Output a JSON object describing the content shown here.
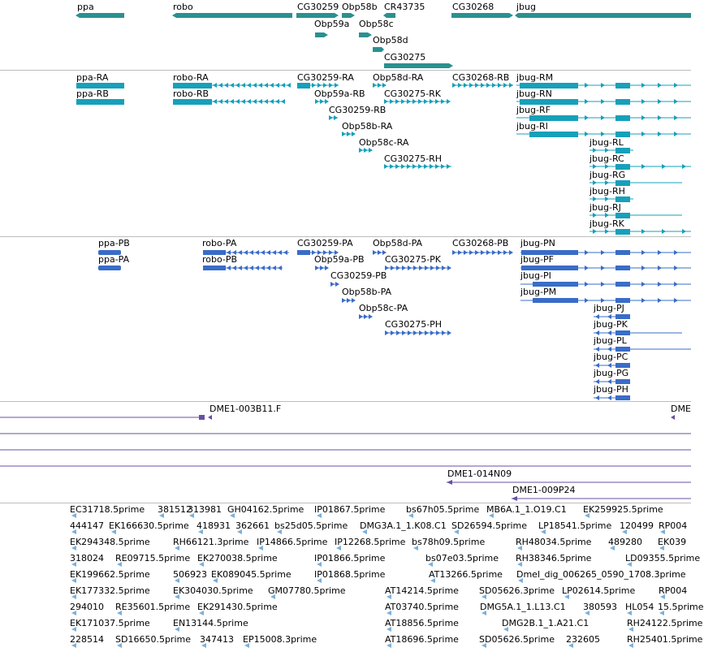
{
  "colors": {
    "gene": "#2a9090",
    "transcript": "#17a0ba",
    "protein": "#3a6cc8",
    "clone": "#6a4fa3",
    "est": "#7ab0dc",
    "divider": "#bdbdbd"
  },
  "genes_track": {
    "labels": [
      "ppa",
      "robo",
      "CG30259",
      "Obp58b",
      "CR43735",
      "CG30268",
      "jbug",
      "Obp59a",
      "Obp58c",
      "Obp58d",
      "CG30275"
    ]
  },
  "transcripts_track": {
    "labels": [
      "ppa-RA",
      "robo-RA",
      "CG30259-RA",
      "Obp58d-RA",
      "CG30268-RB",
      "jbug-RM",
      "ppa-RB",
      "robo-RB",
      "Obp59a-RB",
      "CG30275-RK",
      "jbug-RN",
      "CG30259-RB",
      "jbug-RF",
      "Obp58b-RA",
      "jbug-RI",
      "Obp58c-RA",
      "jbug-RL",
      "CG30275-RH",
      "jbug-RC",
      "jbug-RG",
      "jbug-RH",
      "jbug-RJ",
      "jbug-RK"
    ]
  },
  "proteins_track": {
    "labels": [
      "ppa-PB",
      "robo-PA",
      "CG30259-PA",
      "Obp58d-PA",
      "CG30268-PB",
      "jbug-PN",
      "ppa-PA",
      "robo-PB",
      "Obp59a-PB",
      "CG30275-PK",
      "jbug-PF",
      "CG30259-PB",
      "jbug-PI",
      "Obp58b-PA",
      "jbug-PM",
      "Obp58c-PA",
      "jbug-PJ",
      "CG30275-PH",
      "jbug-PK",
      "jbug-PL",
      "jbug-PC",
      "jbug-PG",
      "jbug-PH"
    ]
  },
  "clones_track": {
    "labels": [
      "DME1-003B11.F",
      "DME",
      "DME1-014N09",
      "DME1-009P24"
    ]
  },
  "ests_track": {
    "labels": [
      "EC31718.5prime",
      "381512",
      "313981",
      "GH04162.5prime",
      "IP01867.5prime",
      "bs67h05.5prime",
      "MB6A.1_1.O19.C1",
      "EK259925.5prime",
      "444147",
      "EK166630.5prime",
      "418931",
      "362661",
      "bs25d05.5prime",
      "DMG3A.1_1.K08.C1",
      "SD26594.5prime",
      "LP18541.5prime",
      "120499",
      "RP004",
      "EK294348.5prime",
      "RH66121.3prime",
      "IP14866.5prime",
      "IP12268.5prime",
      "bs78h09.5prime",
      "RH48034.5prime",
      "489280",
      "EK039",
      "318024",
      "RE09715.5prime",
      "EK270038.5prime",
      "IP01866.5prime",
      "bs07e03.5prime",
      "RH38346.5prime",
      "LD09355.5prime",
      "EK199662.5prime",
      "506923",
      "EK089045.5prime",
      "IP01868.5prime",
      "AT13266.5prime",
      "Dmel_dig_006265_0590_1708.3prime",
      "EK177332.5prime",
      "EK304030.5prime",
      "GM07780.5prime",
      "AT14214.5prime",
      "SD05626.3prime",
      "LP02614.5prime",
      "RP004",
      "294010",
      "RE35601.5prime",
      "EK291430.5prime",
      "AT03740.5prime",
      "DMG5A.1_1.L13.C1",
      "380593",
      "HL054",
      "15.5prime",
      "EK171037.5prime",
      "EN13144.5prime",
      "AT18856.5prime",
      "DMG2B.1_1.A21.C1",
      "RH24122.5prime",
      "228514",
      "SD16650.5prime",
      "347413",
      "EP15008.3prime",
      "AT18696.5prime",
      "SD05626.5prime",
      "232605",
      "RH25401.5prime"
    ]
  }
}
